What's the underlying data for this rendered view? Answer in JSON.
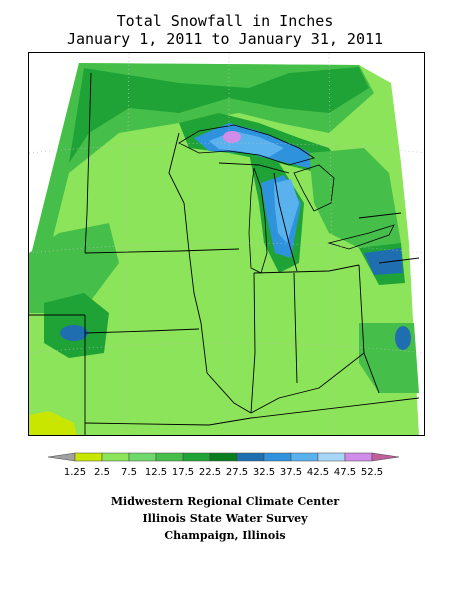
{
  "title": {
    "line1": "Total Snowfall in Inches",
    "line2": "January 1, 2011 to January 31, 2011"
  },
  "legend": {
    "labels": [
      "1.25",
      "2.5",
      "7.5",
      "12.5",
      "17.5",
      "22.5",
      "27.5",
      "32.5",
      "37.5",
      "42.5",
      "47.5",
      "52.5"
    ],
    "bins": [
      {
        "color": "#a0a0a0"
      },
      {
        "color": "#c8e600"
      },
      {
        "color": "#8ce45a"
      },
      {
        "color": "#6fd86a"
      },
      {
        "color": "#46bf4a"
      },
      {
        "color": "#1fa336"
      },
      {
        "color": "#0b7d1e"
      },
      {
        "color": "#1f6fb0"
      },
      {
        "color": "#2f92dd"
      },
      {
        "color": "#59b2ee"
      },
      {
        "color": "#a8d6f7"
      },
      {
        "color": "#d08ce8"
      },
      {
        "color": "#c0609a"
      }
    ]
  },
  "credits": {
    "line1": "Midwestern Regional Climate Center",
    "line2": "Illinois State Water Survey",
    "line3": "Champaign, Illinois"
  },
  "colors": {
    "background_field": "#6fd86a",
    "border_lines": "#000000",
    "graticule": "#bdbdbd"
  }
}
